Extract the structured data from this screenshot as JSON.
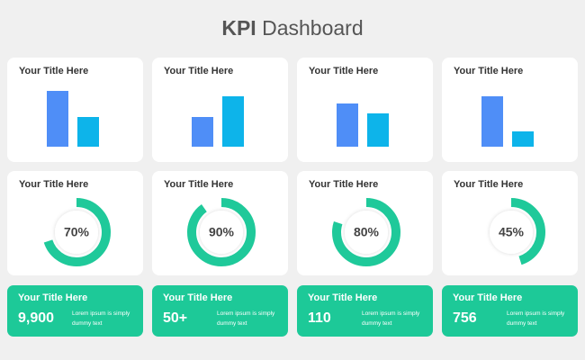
{
  "title": {
    "bold": "KPI",
    "regular": "Dashboard"
  },
  "bar_cards": [
    {
      "type": "bar",
      "title": "Your Title Here",
      "values": [
        62,
        33
      ],
      "colors": [
        "#4f8ef7",
        "#0db4ea"
      ],
      "ylim": [
        0,
        70
      ]
    },
    {
      "type": "bar",
      "title": "Your Title Here",
      "values": [
        33,
        56
      ],
      "colors": [
        "#4f8ef7",
        "#0db4ea"
      ],
      "ylim": [
        0,
        70
      ]
    },
    {
      "type": "bar",
      "title": "Your Title Here",
      "values": [
        48,
        37
      ],
      "colors": [
        "#4f8ef7",
        "#0db4ea"
      ],
      "ylim": [
        0,
        70
      ]
    },
    {
      "type": "bar",
      "title": "Your Title Here",
      "values": [
        56,
        17
      ],
      "colors": [
        "#4f8ef7",
        "#0db4ea"
      ],
      "ylim": [
        0,
        70
      ]
    }
  ],
  "donut_cards": [
    {
      "type": "donut",
      "title": "Your Title Here",
      "value": {
        "value": 70,
        "label": "70%"
      },
      "max": 100,
      "color": "#1fc99a"
    },
    {
      "type": "donut",
      "title": "Your Title Here",
      "value": {
        "value": 90,
        "label": "90%"
      },
      "max": 100,
      "color": "#1fc99a"
    },
    {
      "type": "donut",
      "title": "Your Title Here",
      "value": {
        "value": 80,
        "label": "80%"
      },
      "max": 100,
      "color": "#1fc99a"
    },
    {
      "type": "donut",
      "title": "Your Title Here",
      "value": {
        "value": 45,
        "label": "45%"
      },
      "max": 100,
      "color": "#1fc99a"
    }
  ],
  "kpi_cards": [
    {
      "title": "Your Title Here",
      "value": {
        "value": 9900,
        "label": "9,900"
      },
      "text": "Lorem ipsum is simply dummy text"
    },
    {
      "title": "Your Title Here",
      "value": {
        "value": 50,
        "label": "50+"
      },
      "text": "Lorem ipsum is simply dummy text"
    },
    {
      "title": "Your Title Here",
      "value": 110,
      "text": "Lorem ipsum is simply dummy text"
    },
    {
      "title": "Your Title Here",
      "value": 756,
      "text": "Lorem ipsum is simply dummy text"
    }
  ]
}
